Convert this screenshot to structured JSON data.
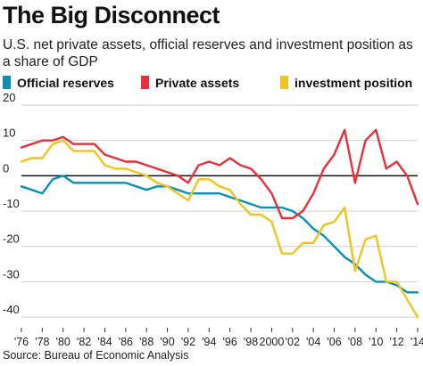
{
  "header": {
    "title": "The Big Disconnect",
    "subtitle": "U.S. net private assets, official reserves and investment position as a share of GDP"
  },
  "legend": [
    {
      "label": "Official reserves",
      "color": "#0a8fb5"
    },
    {
      "label": "Private assets",
      "color": "#e8303a"
    },
    {
      "label": "investment position",
      "color": "#f0c41f"
    }
  ],
  "source": "Source: Bureau of Economic Analysis",
  "chart_data": {
    "type": "line",
    "xlabel": "",
    "ylabel": "",
    "xlim": [
      1976,
      2014
    ],
    "ylim": [
      -43,
      20
    ],
    "yticks": [
      20,
      10,
      0,
      -10,
      -20,
      -30,
      -40
    ],
    "xticks": [
      1976,
      1978,
      1980,
      1982,
      1984,
      1986,
      1988,
      1990,
      1992,
      1994,
      1996,
      1998,
      2000,
      2002,
      2004,
      2006,
      2008,
      2010,
      2012,
      2014
    ],
    "xtick_labels": [
      "'76",
      "'78",
      "'80",
      "'82",
      "'84",
      "'86",
      "'88",
      "'90",
      "'92",
      "'94",
      "'96",
      "'98",
      "2000",
      "'02",
      "'04",
      "'06",
      "'08",
      "'10",
      "'12",
      "'14"
    ],
    "grid": "horizontal",
    "legend_position": "top",
    "series": [
      {
        "name": "Official reserves",
        "color": "#0a8fb5",
        "x": [
          1976,
          1977,
          1978,
          1979,
          1980,
          1981,
          1982,
          1983,
          1984,
          1985,
          1986,
          1987,
          1988,
          1989,
          1990,
          1991,
          1992,
          1993,
          1994,
          1995,
          1996,
          1997,
          1998,
          1999,
          2000,
          2001,
          2002,
          2003,
          2004,
          2005,
          2006,
          2007,
          2008,
          2009,
          2010,
          2011,
          2012,
          2013,
          2014
        ],
        "y": [
          -3,
          -4,
          -5,
          -1,
          0,
          -2,
          -2,
          -2,
          -2,
          -2,
          -2,
          -3,
          -4,
          -3,
          -3,
          -4,
          -5,
          -5,
          -5,
          -5,
          -6,
          -7,
          -8,
          -9,
          -9,
          -9,
          -10,
          -12,
          -15,
          -17,
          -20,
          -23,
          -25,
          -28,
          -30,
          -30,
          -31,
          -33,
          -33
        ]
      },
      {
        "name": "Private assets",
        "color": "#e8303a",
        "x": [
          1976,
          1977,
          1978,
          1979,
          1980,
          1981,
          1982,
          1983,
          1984,
          1985,
          1986,
          1987,
          1988,
          1989,
          1990,
          1991,
          1992,
          1993,
          1994,
          1995,
          1996,
          1997,
          1998,
          1999,
          2000,
          2001,
          2002,
          2003,
          2004,
          2005,
          2006,
          2007,
          2008,
          2009,
          2010,
          2011,
          2012,
          2013,
          2014
        ],
        "y": [
          8,
          9,
          10,
          10,
          11,
          9,
          9,
          9,
          6,
          5,
          4,
          4,
          3,
          2,
          1,
          0,
          -2,
          3,
          4,
          3,
          5,
          3,
          2,
          -1,
          -5,
          -12,
          -12,
          -10,
          -5,
          2,
          6,
          13,
          -2,
          10,
          13,
          2,
          4,
          0,
          -8
        ]
      },
      {
        "name": "investment position",
        "color": "#f0c41f",
        "x": [
          1976,
          1977,
          1978,
          1979,
          1980,
          1981,
          1982,
          1983,
          1984,
          1985,
          1986,
          1987,
          1988,
          1989,
          1990,
          1991,
          1992,
          1993,
          1994,
          1995,
          1996,
          1997,
          1998,
          1999,
          2000,
          2001,
          2002,
          2003,
          2004,
          2005,
          2006,
          2007,
          2008,
          2009,
          2010,
          2011,
          2012,
          2013,
          2014
        ],
        "y": [
          4,
          5,
          5,
          9,
          10,
          7,
          7,
          7,
          3,
          2,
          2,
          1,
          0,
          -2,
          -3,
          -5,
          -7,
          -1,
          -1,
          -3,
          -4,
          -8,
          -11,
          -11,
          -13,
          -22,
          -22,
          -19,
          -19,
          -14,
          -13,
          -9,
          -27,
          -18,
          -17,
          -30,
          -30,
          -35,
          -40
        ]
      }
    ]
  }
}
